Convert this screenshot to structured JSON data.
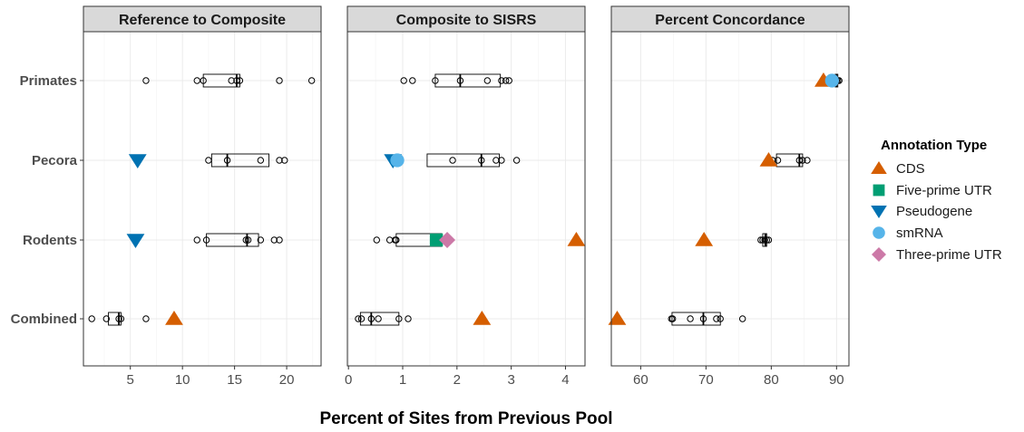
{
  "chart_data": {
    "type": "boxplot",
    "xlabel": "Percent of Sites from Previous Pool",
    "categories": [
      "Primates",
      "Pecora",
      "Rodents",
      "Combined"
    ],
    "legend": {
      "title": "Annotation Type",
      "position": "right",
      "entries": [
        {
          "name": "CDS",
          "shape": "triangle-up",
          "color": "#D55E00"
        },
        {
          "name": "Five-prime UTR",
          "shape": "square",
          "color": "#009E73"
        },
        {
          "name": "Pseudogene",
          "shape": "triangle-down",
          "color": "#0072B2"
        },
        {
          "name": "smRNA",
          "shape": "circle",
          "color": "#56B4E9"
        },
        {
          "name": "Three-prime UTR",
          "shape": "diamond",
          "color": "#CC79A7"
        }
      ]
    },
    "panels": [
      {
        "title": "Reference to Composite",
        "xlim": [
          0.5,
          23.3
        ],
        "xticks": [
          5,
          10,
          15,
          20
        ],
        "grid": true,
        "rows": [
          {
            "category": "Primates",
            "box": [
              12.0,
              15.2,
              15.5
            ],
            "points": [
              6.5,
              11.4,
              12.0,
              14.7,
              15.2,
              15.5,
              19.3,
              22.4
            ],
            "annotations": []
          },
          {
            "category": "Pecora",
            "box": [
              12.8,
              14.3,
              18.3
            ],
            "points": [
              12.5,
              14.3,
              17.5,
              19.3,
              19.8
            ],
            "annotations": [
              {
                "type": "Pseudogene",
                "value": 5.7
              }
            ]
          },
          {
            "category": "Rodents",
            "box": [
              12.3,
              16.2,
              17.3
            ],
            "points": [
              11.4,
              12.3,
              16.1,
              16.3,
              17.5,
              18.8,
              19.3
            ],
            "annotations": [
              {
                "type": "Pseudogene",
                "value": 5.5
              }
            ]
          },
          {
            "category": "Combined",
            "box": [
              2.9,
              3.9,
              4.1
            ],
            "points": [
              1.3,
              2.7,
              3.9,
              4.1,
              6.5
            ],
            "annotations": [
              {
                "type": "CDS",
                "value": 9.2
              }
            ]
          }
        ]
      },
      {
        "title": "Composite to SISRS",
        "xlim": [
          -0.02,
          4.36
        ],
        "xticks": [
          0,
          1,
          2,
          3,
          4
        ],
        "grid": true,
        "rows": [
          {
            "category": "Primates",
            "box": [
              1.6,
              2.06,
              2.8
            ],
            "points": [
              1.02,
              1.18,
              1.6,
              2.06,
              2.56,
              2.82,
              2.9,
              2.96
            ],
            "annotations": []
          },
          {
            "category": "Pecora",
            "box": [
              1.45,
              2.45,
              2.78
            ],
            "points": [
              0.82,
              1.92,
              2.45,
              2.72,
              2.82,
              3.1
            ],
            "annotations": [
              {
                "type": "Pseudogene",
                "value": 0.82
              },
              {
                "type": "smRNA",
                "value": 0.9
              }
            ]
          },
          {
            "category": "Rodents",
            "box": [
              0.88,
              1.58,
              1.72
            ],
            "points": [
              0.52,
              0.76,
              0.86,
              0.88,
              1.62,
              1.72
            ],
            "annotations": [
              {
                "type": "Five-prime UTR",
                "value": 1.62
              },
              {
                "type": "Three-prime UTR",
                "value": 1.82
              },
              {
                "type": "CDS",
                "value": 4.2
              }
            ]
          },
          {
            "category": "Combined",
            "box": [
              0.22,
              0.42,
              0.93
            ],
            "points": [
              0.18,
              0.24,
              0.42,
              0.55,
              0.93,
              1.1
            ],
            "annotations": [
              {
                "type": "CDS",
                "value": 2.46
              }
            ]
          }
        ]
      },
      {
        "title": "Percent Concordance",
        "xlim": [
          55.5,
          91.9
        ],
        "xticks": [
          60,
          70,
          80,
          90
        ],
        "grid": true,
        "rows": [
          {
            "category": "Primates",
            "box": [
              89.8,
              90.0,
              90.2
            ],
            "points": [
              89.8,
              90.0,
              90.2,
              90.4
            ],
            "annotations": [
              {
                "type": "CDS",
                "value": 88.0
              },
              {
                "type": "smRNA",
                "value": 89.3
              }
            ]
          },
          {
            "category": "Pecora",
            "box": [
              80.8,
              84.3,
              84.8
            ],
            "points": [
              80.2,
              81.0,
              84.3,
              84.8,
              85.5
            ],
            "annotations": [
              {
                "type": "CDS",
                "value": 79.6
              }
            ]
          },
          {
            "category": "Rodents",
            "box": [
              78.7,
              79.1,
              79.3
            ],
            "points": [
              78.4,
              78.7,
              79.0,
              79.3,
              79.6
            ],
            "annotations": [
              {
                "type": "CDS",
                "value": 69.7
              }
            ]
          },
          {
            "category": "Combined",
            "box": [
              64.8,
              69.6,
              72.2
            ],
            "points": [
              64.7,
              64.9,
              67.6,
              69.6,
              71.6,
              72.2,
              75.6
            ],
            "annotations": [
              {
                "type": "CDS",
                "value": 56.4
              }
            ]
          }
        ]
      }
    ]
  }
}
